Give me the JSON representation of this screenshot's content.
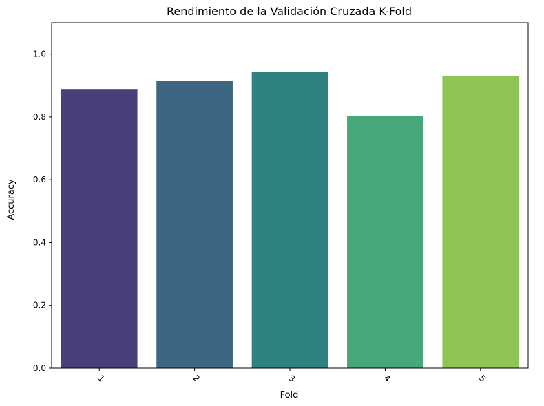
{
  "chart_data": {
    "type": "bar",
    "title": "Rendimiento de la Validación Cruzada K-Fold",
    "xlabel": "Fold",
    "ylabel": "Accuracy",
    "categories": [
      "1",
      "2",
      "3",
      "4",
      "5"
    ],
    "values": [
      0.887,
      0.914,
      0.943,
      0.803,
      0.93
    ],
    "colors": [
      "#4a3f78",
      "#3d6683",
      "#2e8380",
      "#46a878",
      "#8ec556"
    ],
    "ylim": [
      0,
      1.1
    ],
    "yticks": [
      0.0,
      0.2,
      0.4,
      0.6,
      0.8,
      1.0
    ],
    "ytick_labels": [
      "0.0",
      "0.2",
      "0.4",
      "0.6",
      "0.8",
      "1.0"
    ],
    "xtick_rotation": 45,
    "grid": false,
    "legend": "none"
  }
}
